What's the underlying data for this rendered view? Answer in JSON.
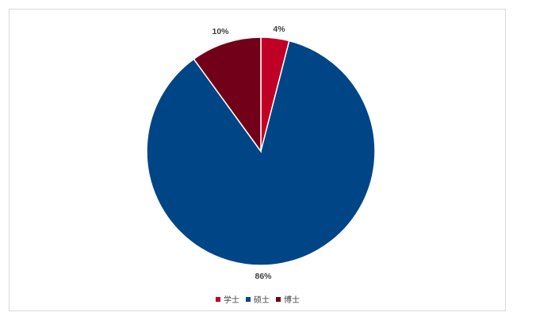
{
  "chart_data": {
    "type": "pie",
    "categories": [
      "学士",
      "硕士",
      "博士"
    ],
    "values": [
      4,
      86,
      10
    ],
    "labels": [
      "4%",
      "86%",
      "10%"
    ],
    "colors": [
      "#c00025",
      "#004586",
      "#720019"
    ],
    "legend_position": "bottom",
    "start_angle": "top, clockwise"
  }
}
